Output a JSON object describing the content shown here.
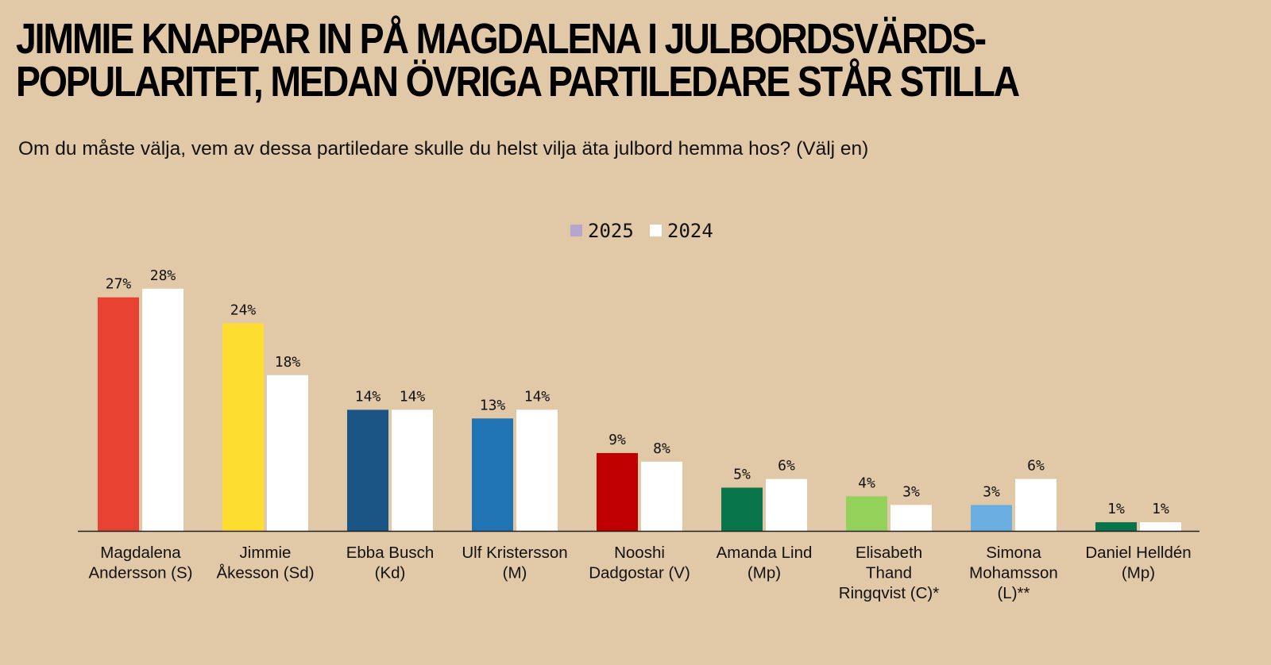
{
  "title_lines": [
    "JIMMIE KNAPPAR IN PÅ MAGDALENA I JULBORDSVÄRDS-",
    "POPULARITET, MEDAN ÖVRIGA PARTILEDARE STÅR STILLA"
  ],
  "subtitle": "Om du måste välja, vem av dessa partiledare skulle du helst vilja äta julbord hemma hos? (Välj en)",
  "chart_data": {
    "type": "bar",
    "title": "JIMMIE KNAPPAR IN PÅ MAGDALENA I JULBORDSVÄRDS-POPULARITET, MEDAN ÖVRIGA PARTILEDARE STÅR STILLA",
    "subtitle": "Om du måste välja, vem av dessa partiledare skulle du helst vilja äta julbord hemma hos? (Välj en)",
    "xlabel": "",
    "ylabel": "",
    "ylim": [
      0,
      30
    ],
    "grid": false,
    "legend_position": "top-center",
    "unit": "%",
    "categories": [
      [
        "Magdalena",
        "Andersson (S)"
      ],
      [
        "Jimmie",
        "Åkesson (Sd)"
      ],
      [
        "Ebba Busch",
        "(Kd)"
      ],
      [
        "Ulf Kristersson",
        "(M)"
      ],
      [
        "Nooshi",
        "Dadgostar (V)"
      ],
      [
        "Amanda Lind",
        "(Mp)"
      ],
      [
        "Elisabeth",
        "Thand",
        "Ringqvist (C)*"
      ],
      [
        "Simona",
        "Mohamsson",
        "(L)**"
      ],
      [
        "Daniel Helldén",
        "(Mp)"
      ]
    ],
    "series": [
      {
        "name": "2025",
        "legend_color": "#B6A6CF",
        "values": [
          27,
          24,
          14,
          13,
          9,
          5,
          4,
          3,
          1
        ],
        "colors": [
          "#E84233",
          "#FDDD30",
          "#1B5586",
          "#2175B4",
          "#C00000",
          "#08754A",
          "#93D15A",
          "#6AAEE2",
          "#087348"
        ]
      },
      {
        "name": "2024",
        "legend_color": "#FFFFFF",
        "values": [
          28,
          18,
          14,
          14,
          8,
          6,
          3,
          6,
          1
        ],
        "colors": [
          "#FFFFFF"
        ]
      }
    ],
    "data_labels": [
      [
        "27%",
        "24%",
        "14%",
        "13%",
        "9%",
        "5%",
        "4%",
        "3%",
        "1%"
      ],
      [
        "28%",
        "18%",
        "14%",
        "14%",
        "8%",
        "6%",
        "3%",
        "6%",
        "1%"
      ]
    ]
  }
}
